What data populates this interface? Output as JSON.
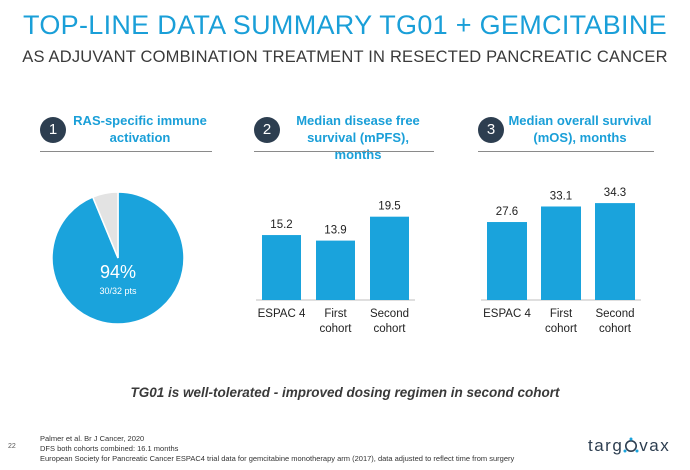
{
  "header": {
    "title": "TOP-LINE DATA SUMMARY TG01 + GEMCITABINE",
    "subtitle": "AS ADJUVANT COMBINATION TREATMENT IN RESECTED PANCREATIC CANCER"
  },
  "panels": [
    {
      "number": "1",
      "title_line1": "RAS-specific immune",
      "title_line2": "activation"
    },
    {
      "number": "2",
      "title_line1": "Median disease free",
      "title_line2": "survival (mPFS), months"
    },
    {
      "number": "3",
      "title_line1": "Median overall survival",
      "title_line2": "(mOS), months"
    }
  ],
  "chart_data": [
    {
      "type": "pie",
      "title": "RAS-specific immune activation",
      "slices": [
        {
          "label": "94%",
          "sublabel": "30/32 pts",
          "value": 30,
          "color": "#1aa3dc"
        },
        {
          "label": "",
          "value": 2,
          "color": "#e3e3e3"
        }
      ]
    },
    {
      "type": "bar",
      "title": "Median disease free survival (mPFS), months",
      "categories": [
        [
          "ESPAC 4"
        ],
        [
          "First",
          "cohort"
        ],
        [
          "Second",
          "cohort"
        ]
      ],
      "values": [
        15.2,
        13.9,
        19.5
      ],
      "labels": [
        "15.2",
        "13.9",
        "19.5"
      ],
      "ylim": [
        0,
        33
      ],
      "color": "#1aa3dc"
    },
    {
      "type": "bar",
      "title": "Median overall survival (mOS), months",
      "categories": [
        [
          "ESPAC 4"
        ],
        [
          "First",
          "cohort"
        ],
        [
          "Second",
          "cohort"
        ]
      ],
      "values": [
        27.6,
        33.1,
        34.3
      ],
      "labels": [
        "27.6",
        "33.1",
        "34.3"
      ],
      "ylim": [
        0,
        40
      ],
      "color": "#1aa3dc"
    }
  ],
  "tagline": "TG01 is well-tolerated - improved dosing regimen in second cohort",
  "page_number": "22",
  "footnotes": [
    "Palmer et al. Br J Cancer, 2020",
    "DFS both cohorts combined: 16.1 months",
    "European Society for Pancreatic Cancer ESPAC4 trial data for gemcitabine monotherapy arm (2017), data adjusted to reflect time from surgery"
  ],
  "logo": {
    "text_left": "targ",
    "text_right": "vax"
  }
}
